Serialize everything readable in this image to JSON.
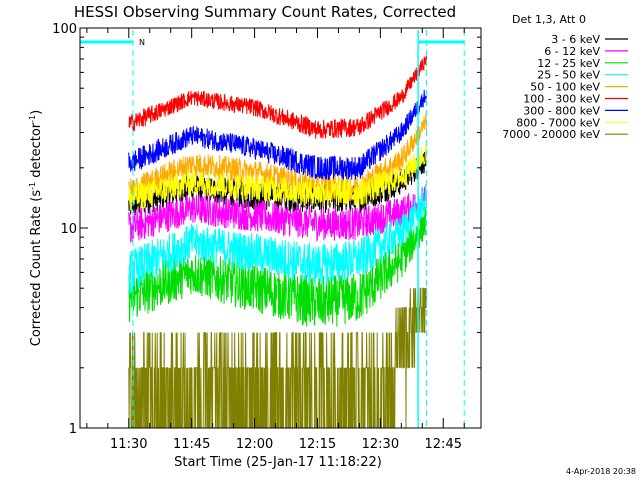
{
  "chart_data": {
    "type": "line",
    "title": "HESSI Observing Summary Count Rates, Corrected",
    "xlabel": "Start Time (25-Jan-17 11:18:22)",
    "ylabel": "Corrected Count Rate (s",
    "ylabel_sup1": "-1",
    "ylabel_mid": " detector",
    "ylabel_sup2": "-1",
    "ylabel_end": ")",
    "y_scale": "log",
    "ylim": [
      1,
      100
    ],
    "y_ticks": [
      {
        "value": 1,
        "label": "1"
      },
      {
        "value": 10,
        "label": "10"
      },
      {
        "value": 100,
        "label": "100"
      }
    ],
    "xlim": [
      "11:18:22",
      "12:54:00"
    ],
    "x_ticks": [
      {
        "time": "11:30",
        "label": "11:30"
      },
      {
        "time": "11:45",
        "label": "11:45"
      },
      {
        "time": "12:00",
        "label": "12:00"
      },
      {
        "time": "12:15",
        "label": "12:15"
      },
      {
        "time": "12:30",
        "label": "12:30"
      },
      {
        "time": "12:45",
        "label": "12:45"
      }
    ],
    "data_start": "11:30",
    "data_end": "12:41",
    "night_marker": {
      "label": "N",
      "color": "#00ffff",
      "dashed_times": [
        "11:31",
        "12:41",
        "12:50"
      ],
      "solid_times": [
        "12:39"
      ],
      "bars": [
        {
          "start": "11:18:22",
          "end": "11:31"
        },
        {
          "start": "12:39",
          "end": "12:50"
        }
      ]
    },
    "legend_header": "Det 1,3, Att 0",
    "legend_position": "right",
    "series": [
      {
        "name": "3 - 6 keV",
        "color": "#000000",
        "x": [
          "11:30",
          "11:45",
          "12:00",
          "12:15",
          "12:25",
          "12:35",
          "12:41"
        ],
        "values": [
          13,
          16,
          14.5,
          14,
          14,
          17,
          22
        ]
      },
      {
        "name": "6 - 12 keV",
        "color": "#ff00ff",
        "x": [
          "11:30",
          "11:45",
          "12:00",
          "12:15",
          "12:25",
          "12:35",
          "12:41"
        ],
        "values": [
          10,
          12.5,
          11.5,
          10.5,
          10.5,
          12,
          14
        ]
      },
      {
        "name": "12 - 25 keV",
        "color": "#00dd00",
        "x": [
          "11:30",
          "11:45",
          "12:00",
          "12:15",
          "12:25",
          "12:35",
          "12:41"
        ],
        "values": [
          4.5,
          6,
          5,
          4.2,
          4.5,
          7,
          11
        ]
      },
      {
        "name": "25 - 50 keV",
        "color": "#00ffff",
        "x": [
          "11:30",
          "11:45",
          "12:00",
          "12:15",
          "12:25",
          "12:35",
          "12:41"
        ],
        "values": [
          6,
          8.5,
          7.5,
          6.5,
          7,
          9.5,
          14
        ]
      },
      {
        "name": "50 - 100 keV",
        "color": "#ffaa00",
        "x": [
          "11:30",
          "11:45",
          "12:00",
          "12:15",
          "12:25",
          "12:35",
          "12:41"
        ],
        "values": [
          15,
          21,
          19,
          16,
          16,
          22,
          34
        ]
      },
      {
        "name": "100 - 300 keV",
        "color": "#ff0000",
        "x": [
          "11:30",
          "11:45",
          "12:00",
          "12:15",
          "12:25",
          "12:35",
          "12:41"
        ],
        "values": [
          33,
          45,
          40,
          31,
          32,
          45,
          70
        ]
      },
      {
        "name": "300 - 800 keV",
        "color": "#0000ff",
        "x": [
          "11:30",
          "11:45",
          "12:00",
          "12:15",
          "12:25",
          "12:35",
          "12:41"
        ],
        "values": [
          21,
          29,
          25,
          20,
          20,
          30,
          47
        ]
      },
      {
        "name": "800 - 7000 keV",
        "color": "#ffff00",
        "x": [
          "11:30",
          "11:45",
          "12:00",
          "12:15",
          "12:25",
          "12:35",
          "12:41"
        ],
        "values": [
          14,
          17,
          16,
          15,
          15,
          18,
          24
        ]
      },
      {
        "name": "7000 - 20000 keV",
        "color": "#808000",
        "x": [
          "11:30",
          "11:45",
          "12:00",
          "12:15",
          "12:25",
          "12:35",
          "12:41"
        ],
        "values": [
          1.6,
          2,
          1.5,
          1.4,
          1.5,
          2.6,
          4.5
        ]
      }
    ]
  },
  "footer": {
    "timestamp": "4-Apr-2018 20:38"
  }
}
